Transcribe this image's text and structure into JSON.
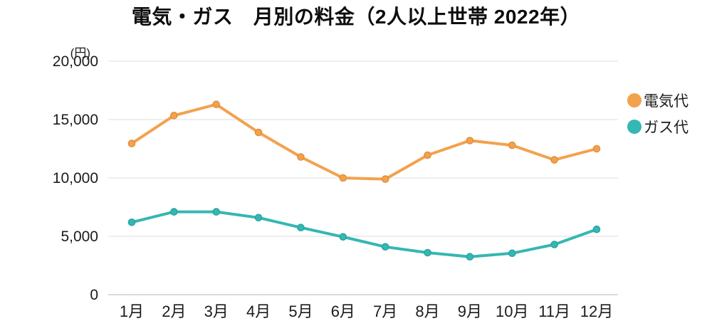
{
  "title": "電気・ガス　月別の料金（2人以上世帯 2022年）",
  "y_axis": {
    "unit": "(円)",
    "tick_labels": [
      "0",
      "5,000",
      "10,000",
      "15,000",
      "20,000"
    ]
  },
  "legend": {
    "items": [
      {
        "label": "電気代",
        "color": "#F2A24E"
      },
      {
        "label": "ガス代",
        "color": "#35B7B3"
      }
    ]
  },
  "colors": {
    "electricity": "#F2A24E",
    "electricity_marker_edge": "#E18F38",
    "gas": "#35B7B3",
    "gas_marker_edge": "#2AA39F",
    "gridline": "#E4E4E4",
    "axis_line": "#CFCFCF",
    "text": "#1B1B1B"
  },
  "chart_data": {
    "type": "line",
    "title": "電気・ガス　月別の料金（2人以上世帯 2022年）",
    "xlabel": "",
    "ylabel": "(円)",
    "categories": [
      "1月",
      "2月",
      "3月",
      "4月",
      "5月",
      "6月",
      "7月",
      "8月",
      "9月",
      "10月",
      "11月",
      "12月"
    ],
    "series": [
      {
        "name": "電気代",
        "color": "#F2A24E",
        "values": [
          12950,
          15350,
          16300,
          13900,
          11800,
          10000,
          9900,
          11950,
          13200,
          12800,
          11550,
          12500
        ]
      },
      {
        "name": "ガス代",
        "color": "#35B7B3",
        "values": [
          6200,
          7100,
          7100,
          6600,
          5750,
          4950,
          4100,
          3600,
          3250,
          3550,
          4300,
          5600
        ]
      }
    ],
    "ylim": [
      0,
      20000
    ],
    "ytick_step": 5000,
    "grid": true,
    "legend_position": "right"
  }
}
